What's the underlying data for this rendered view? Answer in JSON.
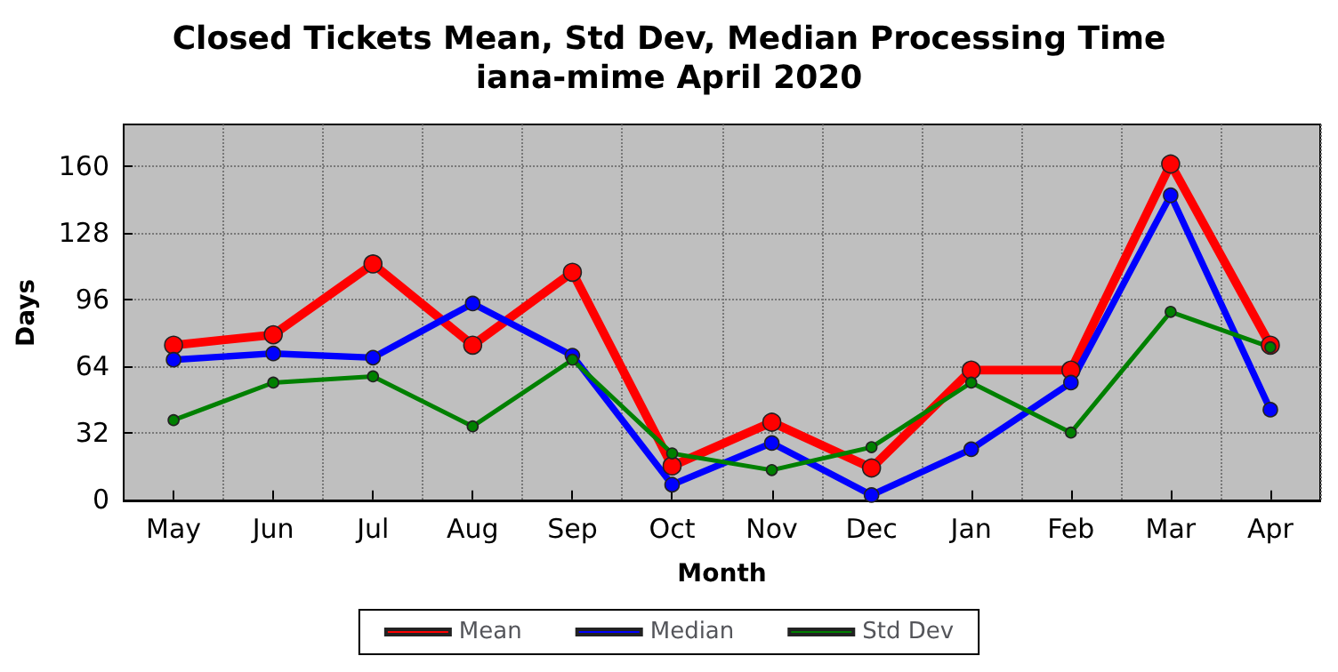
{
  "chart_data": {
    "type": "line",
    "title": "Closed Tickets Mean, Std Dev, Median Processing Time\niana-mime April 2020",
    "xlabel": "Month",
    "ylabel": "Days",
    "categories": [
      "May",
      "Jun",
      "Jul",
      "Aug",
      "Sep",
      "Oct",
      "Nov",
      "Dec",
      "Jan",
      "Feb",
      "Mar",
      "Apr"
    ],
    "series": [
      {
        "name": "Mean",
        "color": "#ff0000",
        "values": [
          74,
          79,
          113,
          74,
          109,
          16,
          37,
          15,
          62,
          62,
          161,
          74
        ]
      },
      {
        "name": "Median",
        "color": "#0000ff",
        "values": [
          67,
          70,
          68,
          94,
          69,
          7,
          27,
          2,
          24,
          56,
          146,
          43
        ]
      },
      {
        "name": "Std Dev",
        "color": "#008000",
        "values": [
          38,
          56,
          59,
          35,
          67,
          22,
          14,
          25,
          56,
          32,
          90,
          73
        ]
      }
    ],
    "ylim": [
      -1,
      180
    ],
    "yticks": [
      0,
      32,
      64,
      96,
      128,
      160
    ],
    "grid": true,
    "legend": "bottom",
    "marker": "circle",
    "line_style": "solid"
  }
}
